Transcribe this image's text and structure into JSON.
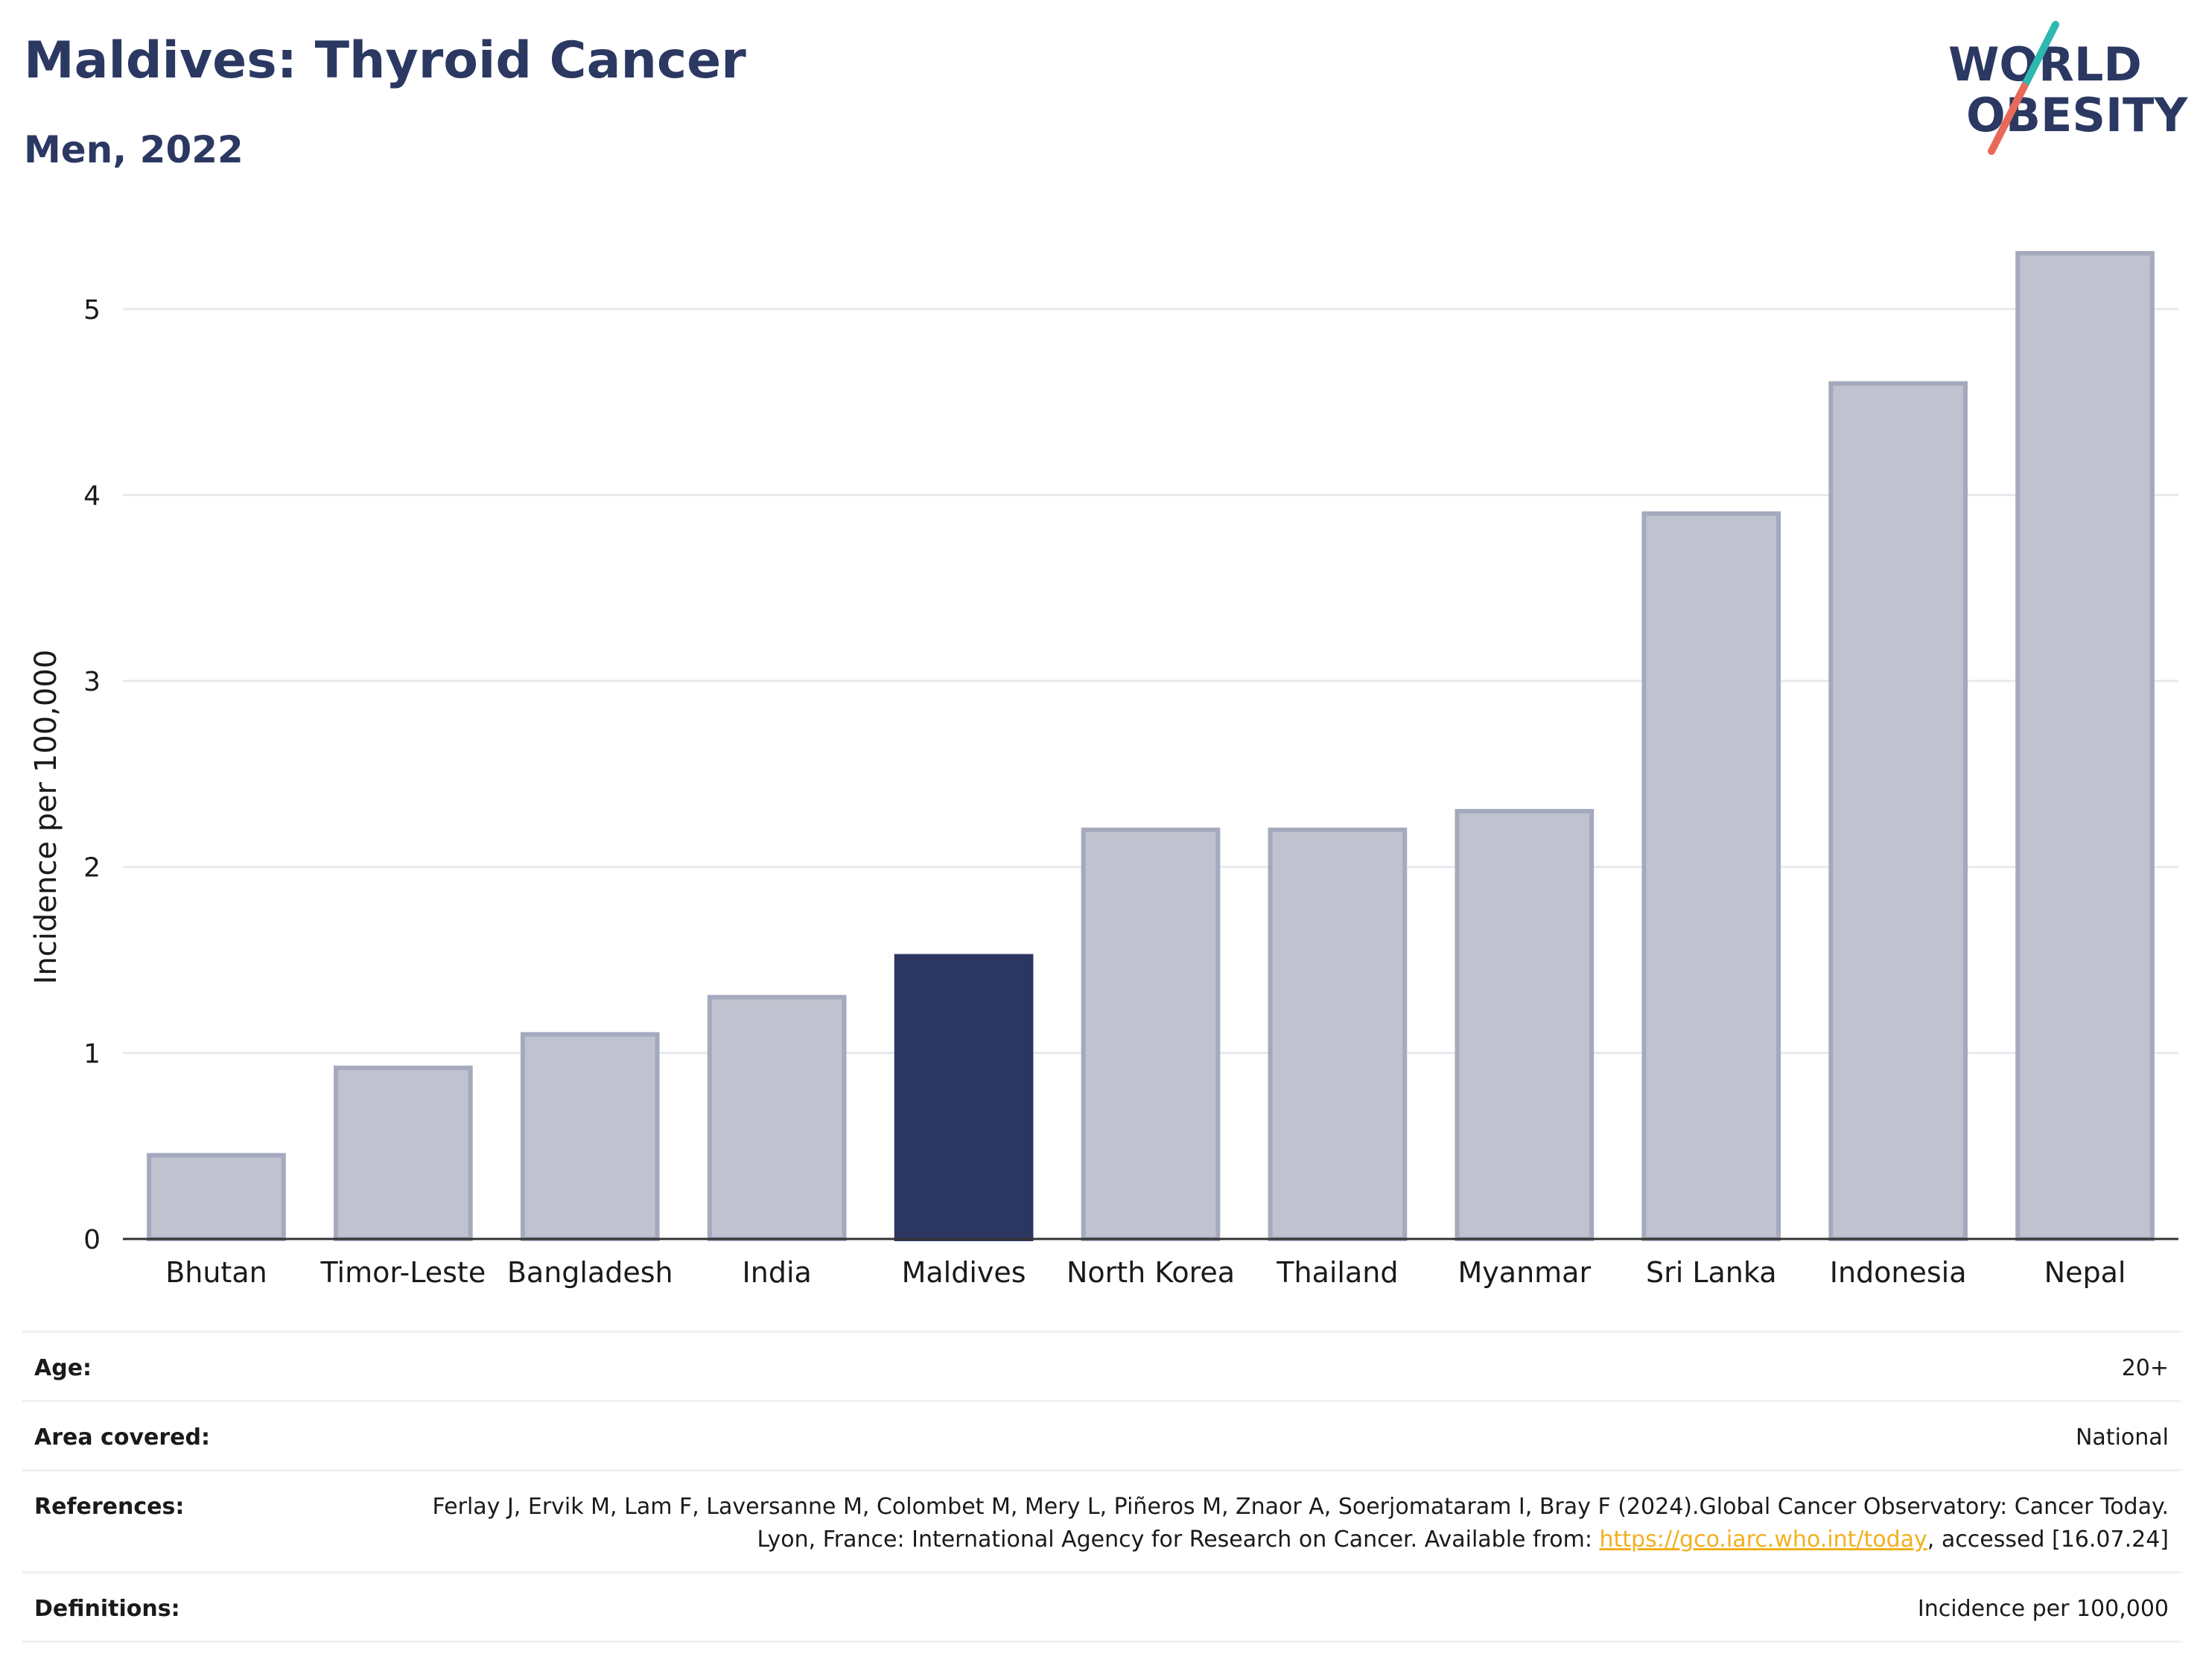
{
  "header": {
    "title": "Maldives: Thyroid Cancer",
    "subtitle": "Men, 2022"
  },
  "logo": {
    "line1": "WORLD",
    "line2": "OBESITY",
    "slash_colors": [
      "#2fb8b0",
      "#e8695a"
    ],
    "text_color": "#2b3862"
  },
  "chart_data": {
    "type": "bar",
    "categories": [
      "Bhutan",
      "Timor-Leste",
      "Bangladesh",
      "India",
      "Maldives",
      "North Korea",
      "Thailand",
      "Myanmar",
      "Sri Lanka",
      "Indonesia",
      "Nepal"
    ],
    "values": [
      0.45,
      0.92,
      1.1,
      1.3,
      1.52,
      2.2,
      2.2,
      2.3,
      3.9,
      4.6,
      5.3
    ],
    "highlight": "Maldives",
    "xlabel": "",
    "ylabel": "Incidence per 100,000",
    "ylim": [
      0,
      5.5
    ],
    "yticks": [
      0,
      1,
      2,
      3,
      4,
      5
    ],
    "grid": true,
    "colors": {
      "bar": "#c0c3cf",
      "bar_border": "#a4a9bd",
      "highlight": "#2b3661",
      "grid": "#e8e9ee",
      "axis": "#333333"
    }
  },
  "meta": {
    "age_label": "Age:",
    "age_value": "20+",
    "area_label": "Area covered:",
    "area_value": "National",
    "references_label": "References:",
    "references_text_1": "Ferlay J, Ervik M, Lam F, Laversanne M, Colombet M, Mery L, Piñeros M, Znaor A, Soerjomataram I, Bray F (2024).Global Cancer Observatory: Cancer Today. Lyon, France: International Agency for Research on Cancer. Available from: ",
    "references_link": "https://gco.iarc.who.int/today",
    "references_text_2": ", accessed [16.07.24]",
    "definitions_label": "Definitions:",
    "definitions_value": "Incidence per 100,000"
  }
}
